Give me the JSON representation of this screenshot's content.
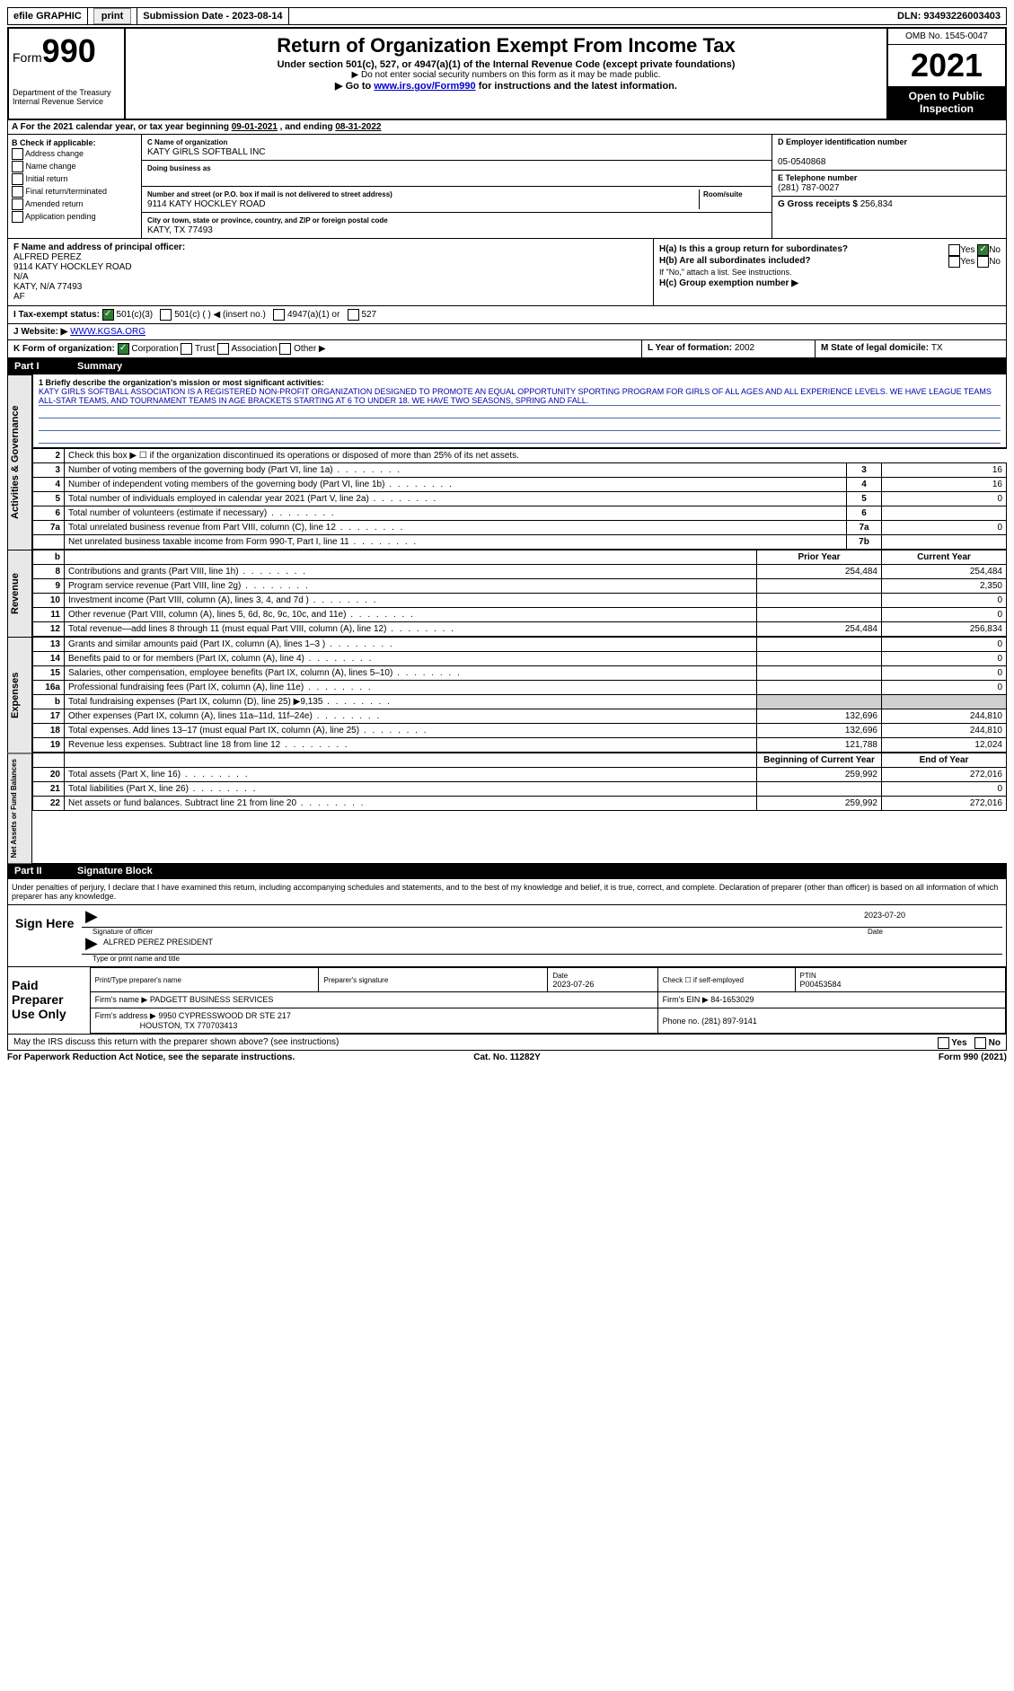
{
  "topbar": {
    "efile": "efile GRAPHIC",
    "print": "print",
    "sub_label": "Submission Date - ",
    "sub_date": "2023-08-14",
    "dln_label": "DLN: ",
    "dln": "93493226003403"
  },
  "header": {
    "form_prefix": "Form",
    "form_num": "990",
    "title": "Return of Organization Exempt From Income Tax",
    "subtitle": "Under section 501(c), 527, or 4947(a)(1) of the Internal Revenue Code (except private foundations)",
    "note1": "▶ Do not enter social security numbers on this form as it may be made public.",
    "note2_a": "▶ Go to ",
    "note2_link": "www.irs.gov/Form990",
    "note2_b": " for instructions and the latest information.",
    "dept": "Department of the Treasury",
    "irs": "Internal Revenue Service",
    "omb": "OMB No. 1545-0047",
    "year": "2021",
    "open": "Open to Public Inspection"
  },
  "row_a": {
    "text_a": "A For the 2021 calendar year, or tax year beginning ",
    "begin": "09-01-2021",
    "text_b": " , and ending ",
    "end": "08-31-2022"
  },
  "col_b": {
    "header": "B Check if applicable:",
    "items": [
      "Address change",
      "Name change",
      "Initial return",
      "Final return/terminated",
      "Amended return",
      "Application pending"
    ]
  },
  "col_c": {
    "name_label": "C Name of organization",
    "name": "KATY GIRLS SOFTBALL INC",
    "dba_label": "Doing business as",
    "dba": "",
    "addr_label": "Number and street (or P.O. box if mail is not delivered to street address)",
    "room_label": "Room/suite",
    "addr": "9114 KATY HOCKLEY ROAD",
    "city_label": "City or town, state or province, country, and ZIP or foreign postal code",
    "city": "KATY, TX  77493"
  },
  "col_de": {
    "d_label": "D Employer identification number",
    "ein": "05-0540868",
    "e_label": "E Telephone number",
    "phone": "(281) 787-0027",
    "g_label": "G Gross receipts $ ",
    "gross": "256,834"
  },
  "col_f": {
    "label": "F  Name and address of principal officer:",
    "name": "ALFRED PEREZ",
    "addr1": "9114 KATY HOCKLEY ROAD",
    "addr2": "N/A",
    "addr3": "KATY, N/A  77493",
    "addr4": "AF"
  },
  "col_h": {
    "ha": "H(a)  Is this a group return for subordinates?",
    "hb": "H(b)  Are all subordinates included?",
    "hb_note": "If \"No,\" attach a list. See instructions.",
    "hc": "H(c)  Group exemption number ▶",
    "yes": "Yes",
    "no": "No"
  },
  "row_i": {
    "label": "I  Tax-exempt status:",
    "o1": "501(c)(3)",
    "o2": "501(c) (  ) ◀ (insert no.)",
    "o3": "4947(a)(1) or",
    "o4": "527"
  },
  "row_j": {
    "label": "J  Website: ▶",
    "val": "WWW.KGSA.ORG"
  },
  "row_k": {
    "label": "K Form of organization:",
    "o1": "Corporation",
    "o2": "Trust",
    "o3": "Association",
    "o4": "Other ▶"
  },
  "row_lm": {
    "l_label": "L Year of formation: ",
    "l_val": "2002",
    "m_label": "M State of legal domicile: ",
    "m_val": "TX"
  },
  "part1": {
    "num": "Part I",
    "title": "Summary"
  },
  "mission": {
    "label": "1  Briefly describe the organization's mission or most significant activities:",
    "text": "KATY GIRLS SOFTBALL ASSOCIATION IS A REGISTERED NON-PROFIT ORGANIZATION DESIGNED TO PROMOTE AN EQUAL OPPORTUNITY SPORTING PROGRAM FOR GIRLS OF ALL AGES AND ALL EXPERIENCE LEVELS. WE HAVE LEAGUE TEAMS ALL-STAR TEAMS, AND TOURNAMENT TEAMS IN AGE BRACKETS STARTING AT 6 TO UNDER 18. WE HAVE TWO SEASONS, SPRING AND FALL."
  },
  "gov_lines": [
    {
      "n": "2",
      "d": "Check this box ▶ ☐ if the organization discontinued its operations or disposed of more than 25% of its net assets.",
      "b": "",
      "v": ""
    },
    {
      "n": "3",
      "d": "Number of voting members of the governing body (Part VI, line 1a)",
      "b": "3",
      "v": "16"
    },
    {
      "n": "4",
      "d": "Number of independent voting members of the governing body (Part VI, line 1b)",
      "b": "4",
      "v": "16"
    },
    {
      "n": "5",
      "d": "Total number of individuals employed in calendar year 2021 (Part V, line 2a)",
      "b": "5",
      "v": "0"
    },
    {
      "n": "6",
      "d": "Total number of volunteers (estimate if necessary)",
      "b": "6",
      "v": ""
    },
    {
      "n": "7a",
      "d": "Total unrelated business revenue from Part VIII, column (C), line 12",
      "b": "7a",
      "v": "0"
    },
    {
      "n": "",
      "d": "Net unrelated business taxable income from Form 990-T, Part I, line 11",
      "b": "7b",
      "v": ""
    }
  ],
  "rev_header": {
    "b": "b",
    "py": "Prior Year",
    "cy": "Current Year"
  },
  "rev_lines": [
    {
      "n": "8",
      "d": "Contributions and grants (Part VIII, line 1h)",
      "py": "254,484",
      "cy": "254,484"
    },
    {
      "n": "9",
      "d": "Program service revenue (Part VIII, line 2g)",
      "py": "",
      "cy": "2,350"
    },
    {
      "n": "10",
      "d": "Investment income (Part VIII, column (A), lines 3, 4, and 7d )",
      "py": "",
      "cy": "0"
    },
    {
      "n": "11",
      "d": "Other revenue (Part VIII, column (A), lines 5, 6d, 8c, 9c, 10c, and 11e)",
      "py": "",
      "cy": "0"
    },
    {
      "n": "12",
      "d": "Total revenue—add lines 8 through 11 (must equal Part VIII, column (A), line 12)",
      "py": "254,484",
      "cy": "256,834"
    }
  ],
  "exp_lines": [
    {
      "n": "13",
      "d": "Grants and similar amounts paid (Part IX, column (A), lines 1–3 )",
      "py": "",
      "cy": "0"
    },
    {
      "n": "14",
      "d": "Benefits paid to or for members (Part IX, column (A), line 4)",
      "py": "",
      "cy": "0"
    },
    {
      "n": "15",
      "d": "Salaries, other compensation, employee benefits (Part IX, column (A), lines 5–10)",
      "py": "",
      "cy": "0"
    },
    {
      "n": "16a",
      "d": "Professional fundraising fees (Part IX, column (A), line 11e)",
      "py": "",
      "cy": "0"
    },
    {
      "n": "b",
      "d": "Total fundraising expenses (Part IX, column (D), line 25) ▶9,135",
      "py": "shaded",
      "cy": "shaded"
    },
    {
      "n": "17",
      "d": "Other expenses (Part IX, column (A), lines 11a–11d, 11f–24e)",
      "py": "132,696",
      "cy": "244,810"
    },
    {
      "n": "18",
      "d": "Total expenses. Add lines 13–17 (must equal Part IX, column (A), line 25)",
      "py": "132,696",
      "cy": "244,810"
    },
    {
      "n": "19",
      "d": "Revenue less expenses. Subtract line 18 from line 12",
      "py": "121,788",
      "cy": "12,024"
    }
  ],
  "na_header": {
    "py": "Beginning of Current Year",
    "cy": "End of Year"
  },
  "na_lines": [
    {
      "n": "20",
      "d": "Total assets (Part X, line 16)",
      "py": "259,992",
      "cy": "272,016"
    },
    {
      "n": "21",
      "d": "Total liabilities (Part X, line 26)",
      "py": "",
      "cy": "0"
    },
    {
      "n": "22",
      "d": "Net assets or fund balances. Subtract line 21 from line 20",
      "py": "259,992",
      "cy": "272,016"
    }
  ],
  "part2": {
    "num": "Part II",
    "title": "Signature Block"
  },
  "sig": {
    "perjury": "Under penalties of perjury, I declare that I have examined this return, including accompanying schedules and statements, and to the best of my knowledge and belief, it is true, correct, and complete. Declaration of preparer (other than officer) is based on all information of which preparer has any knowledge.",
    "sign_here": "Sign Here",
    "sig_officer": "Signature of officer",
    "date_label": "Date",
    "date": "2023-07-20",
    "officer_name": "ALFRED PEREZ  PRESIDENT",
    "type_name": "Type or print name and title"
  },
  "preparer": {
    "title": "Paid Preparer Use Only",
    "print_name_label": "Print/Type preparer's name",
    "sig_label": "Preparer's signature",
    "date_label": "Date",
    "date": "2023-07-26",
    "check_label": "Check ☐ if self-employed",
    "ptin_label": "PTIN",
    "ptin": "P00453584",
    "firm_name_label": "Firm's name    ▶",
    "firm_name": "PADGETT BUSINESS SERVICES",
    "firm_ein_label": "Firm's EIN ▶",
    "firm_ein": "84-1653029",
    "firm_addr_label": "Firm's address ▶",
    "firm_addr1": "9950 CYPRESSWOOD DR STE 217",
    "firm_addr2": "HOUSTON, TX  770703413",
    "phone_label": "Phone no. ",
    "phone": "(281) 897-9141"
  },
  "discuss": {
    "text": "May the IRS discuss this return with the preparer shown above? (see instructions)",
    "yes": "Yes",
    "no": "No"
  },
  "footer": {
    "left": "For Paperwork Reduction Act Notice, see the separate instructions.",
    "center": "Cat. No. 11282Y",
    "right": "Form 990 (2021)"
  },
  "vlabels": {
    "gov": "Activities & Governance",
    "rev": "Revenue",
    "exp": "Expenses",
    "na": "Net Assets or Fund Balances"
  }
}
